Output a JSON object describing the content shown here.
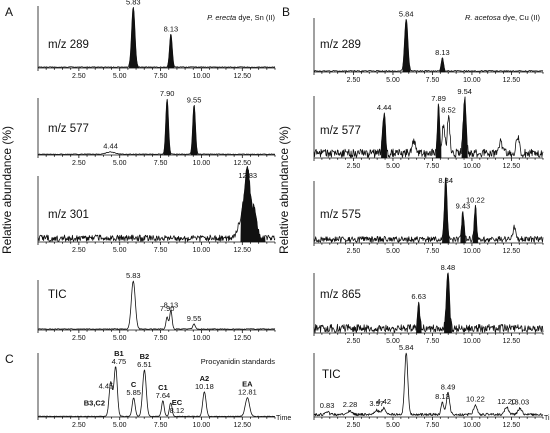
{
  "figure": {
    "ylabel": "Relative abundance (%)",
    "x_unit": "Time"
  },
  "chart_data": [
    {
      "id": "A1",
      "type": "line",
      "panel_letter": "A",
      "corner_text_italic": "P. erecta",
      "corner_text_rest": " dye, Sn (II)",
      "label": "m/z 289",
      "xlim": [
        0,
        14.5
      ],
      "xticks": [
        2.5,
        5.0,
        7.5,
        10.0,
        12.5
      ],
      "tick_labels": [
        "2.50",
        "5.00",
        "7.50",
        "10.00",
        "12.50"
      ],
      "baseline": 0.015,
      "noise": 0.006,
      "peaks": [
        [
          5.83,
          1.0,
          0.1
        ],
        [
          8.13,
          0.55,
          0.08
        ]
      ],
      "shaded": [
        [
          5.58,
          6.18
        ],
        [
          7.92,
          8.34
        ]
      ],
      "peak_labels": [
        {
          "t": 5.83,
          "text": "5.83"
        },
        {
          "t": 8.13,
          "text": "8.13"
        }
      ]
    },
    {
      "id": "A2",
      "type": "line",
      "label": "m/z 577",
      "xlim": [
        0,
        14.5
      ],
      "xticks": [
        2.5,
        5.0,
        7.5,
        10.0,
        12.5
      ],
      "tick_labels": [
        "2.50",
        "5.00",
        "7.50",
        "10.00",
        "12.50"
      ],
      "baseline": 0.015,
      "noise": 0.006,
      "peaks": [
        [
          4.44,
          0.04,
          0.25
        ],
        [
          7.9,
          1.0,
          0.08
        ],
        [
          9.55,
          0.9,
          0.08
        ]
      ],
      "shaded": [
        [
          7.68,
          8.12
        ],
        [
          9.34,
          9.76
        ]
      ],
      "peak_labels": [
        {
          "t": 4.44,
          "text": "4.44"
        },
        {
          "t": 7.9,
          "text": "7.90"
        },
        {
          "t": 9.55,
          "text": "9.55"
        }
      ]
    },
    {
      "id": "A3",
      "type": "line",
      "label": "m/z 301",
      "xlim": [
        0,
        14.5
      ],
      "xticks": [
        2.5,
        5.0,
        7.5,
        10.0,
        12.5
      ],
      "tick_labels": [
        "2.50",
        "5.00",
        "7.50",
        "10.00",
        "12.50"
      ],
      "baseline": 0.06,
      "noise": 0.05,
      "peaks": [
        [
          12.83,
          1.0,
          0.16
        ],
        [
          12.5,
          0.35,
          0.22
        ],
        [
          13.25,
          0.45,
          0.14
        ]
      ],
      "shaded": [
        [
          12.4,
          13.9
        ]
      ],
      "peak_labels": [
        {
          "t": 12.83,
          "text": "12.83"
        }
      ]
    },
    {
      "id": "A4",
      "type": "line",
      "label": "TIC",
      "xlim": [
        0,
        14.5
      ],
      "xticks": [
        2.5,
        5.0,
        7.5,
        10.0,
        12.5
      ],
      "tick_labels": [
        "2.50",
        "5.00",
        "7.50",
        "10.00",
        "12.50"
      ],
      "baseline": 0.02,
      "noise": 0.008,
      "peaks": [
        [
          5.83,
          1.0,
          0.12
        ],
        [
          7.9,
          0.25,
          0.07
        ],
        [
          8.13,
          0.4,
          0.07
        ],
        [
          9.55,
          0.1,
          0.08
        ]
      ],
      "shaded": [],
      "peak_labels": [
        {
          "t": 5.83,
          "text": "5.83"
        },
        {
          "t": 7.9,
          "text": "7.90"
        },
        {
          "t": 8.13,
          "text": "8.13"
        },
        {
          "t": 9.55,
          "text": "9.55"
        }
      ]
    },
    {
      "id": "C",
      "type": "line",
      "panel_letter": "C",
      "corner_text": "Procyanidin standards",
      "label": "",
      "xlim": [
        0,
        14.5
      ],
      "xticks": [
        2.5,
        5.0,
        7.5,
        10.0,
        12.5
      ],
      "tick_labels": [
        "2.50",
        "5.00",
        "7.50",
        "10.00",
        "12.50"
      ],
      "baseline": 0.01,
      "noise": 0.005,
      "peaks": [
        [
          4.45,
          0.55,
          0.1
        ],
        [
          4.75,
          0.8,
          0.1
        ],
        [
          5.85,
          0.3,
          0.09
        ],
        [
          6.51,
          0.75,
          0.11
        ],
        [
          7.64,
          0.25,
          0.08
        ],
        [
          8.12,
          0.22,
          0.08
        ],
        [
          10.18,
          0.4,
          0.1
        ],
        [
          12.81,
          0.3,
          0.13
        ]
      ],
      "shaded": [],
      "peak_labels": [
        {
          "t": 4.1,
          "text": "B3,C2",
          "bold": true
        },
        {
          "t": 4.45,
          "text": "4.45"
        },
        {
          "t": 4.95,
          "text": "B1",
          "bold": true
        },
        {
          "t": 4.95,
          "text": "4.75"
        },
        {
          "t": 6.51,
          "text": "B2",
          "bold": true
        },
        {
          "t": 6.51,
          "text": "6.51"
        },
        {
          "t": 5.85,
          "text": "C",
          "bold": true
        },
        {
          "t": 5.85,
          "text": "5.85"
        },
        {
          "t": 7.64,
          "text": "C1",
          "bold": true
        },
        {
          "t": 7.64,
          "text": "7.64"
        },
        {
          "t": 8.5,
          "text": "EC",
          "bold": true
        },
        {
          "t": 8.5,
          "text": "8.12"
        },
        {
          "t": 10.18,
          "text": "A2",
          "bold": true
        },
        {
          "t": 10.18,
          "text": "10.18"
        },
        {
          "t": 12.81,
          "text": "EA",
          "bold": true
        },
        {
          "t": 12.81,
          "text": "12.81"
        }
      ]
    },
    {
      "id": "B1",
      "type": "line",
      "panel_letter": "B",
      "corner_text_italic": "R. acetosa",
      "corner_text_rest": " dye, Cu (II)",
      "label": "m/z 289",
      "xlim": [
        0,
        14.5
      ],
      "xticks": [
        2.5,
        5.0,
        7.5,
        10.0,
        12.5
      ],
      "tick_labels": [
        "2.50",
        "5.00",
        "7.50",
        "10.00",
        "12.50"
      ],
      "baseline": 0.02,
      "noise": 0.01,
      "peaks": [
        [
          5.84,
          1.0,
          0.1
        ],
        [
          8.13,
          0.25,
          0.07
        ]
      ],
      "shaded": [
        [
          5.62,
          6.08
        ],
        [
          7.95,
          8.3
        ]
      ],
      "peak_labels": [
        {
          "t": 5.84,
          "text": "5.84"
        },
        {
          "t": 8.13,
          "text": "8.13"
        }
      ]
    },
    {
      "id": "B2",
      "type": "line",
      "label": "m/z 577",
      "xlim": [
        0,
        14.5
      ],
      "xticks": [
        2.5,
        5.0,
        7.5,
        10.0,
        12.5
      ],
      "tick_labels": [
        "2.50",
        "5.00",
        "7.50",
        "10.00",
        "12.50"
      ],
      "baseline": 0.08,
      "noise": 0.07,
      "peaks": [
        [
          4.44,
          0.65,
          0.09
        ],
        [
          7.89,
          0.78,
          0.07
        ],
        [
          8.2,
          0.5,
          0.08
        ],
        [
          8.52,
          0.6,
          0.08
        ],
        [
          9.54,
          0.9,
          0.09
        ],
        [
          6.3,
          0.22,
          0.1
        ],
        [
          11.8,
          0.18,
          0.1
        ],
        [
          12.9,
          0.25,
          0.1
        ]
      ],
      "shaded": [
        [
          4.26,
          4.62
        ],
        [
          7.72,
          8.05
        ],
        [
          9.36,
          9.72
        ]
      ],
      "peak_labels": [
        {
          "t": 4.44,
          "text": "4.44"
        },
        {
          "t": 7.89,
          "text": "7.89"
        },
        {
          "t": 8.52,
          "text": "8.52"
        },
        {
          "t": 9.54,
          "text": "9.54"
        }
      ]
    },
    {
      "id": "B3",
      "type": "line",
      "label": "m/z 575",
      "xlim": [
        0,
        14.5
      ],
      "xticks": [
        2.5,
        5.0,
        7.5,
        10.0,
        12.5
      ],
      "tick_labels": [
        "2.50",
        "5.00",
        "7.50",
        "10.00",
        "12.50"
      ],
      "baseline": 0.06,
      "noise": 0.05,
      "peaks": [
        [
          8.34,
          1.0,
          0.08
        ],
        [
          9.43,
          0.45,
          0.07
        ],
        [
          10.22,
          0.55,
          0.07
        ],
        [
          12.7,
          0.2,
          0.1
        ]
      ],
      "shaded": [
        [
          8.12,
          8.58
        ],
        [
          9.28,
          9.6
        ],
        [
          10.06,
          10.38
        ]
      ],
      "peak_labels": [
        {
          "t": 8.34,
          "text": "8.34"
        },
        {
          "t": 9.43,
          "text": "9.43"
        },
        {
          "t": 10.22,
          "text": "10.22"
        }
      ]
    },
    {
      "id": "B4",
      "type": "line",
      "label": "m/z 865",
      "xlim": [
        0,
        14.5
      ],
      "xticks": [
        2.5,
        5.0,
        7.5,
        10.0,
        12.5
      ],
      "tick_labels": [
        "2.50",
        "5.00",
        "7.50",
        "10.00",
        "12.50"
      ],
      "baseline": 0.08,
      "noise": 0.07,
      "peaks": [
        [
          6.63,
          0.4,
          0.07
        ],
        [
          8.48,
          1.0,
          0.09
        ]
      ],
      "shaded": [
        [
          6.48,
          6.8
        ],
        [
          8.25,
          8.72
        ]
      ],
      "peak_labels": [
        {
          "t": 6.63,
          "text": "6.63"
        },
        {
          "t": 8.48,
          "text": "8.48"
        }
      ]
    },
    {
      "id": "B5",
      "type": "line",
      "label": "TIC",
      "xlim": [
        0,
        14.5
      ],
      "xticks": [
        2.5,
        5.0,
        7.5,
        10.0,
        12.5
      ],
      "tick_labels": [
        "2.50",
        "5.00",
        "7.50",
        "10.00",
        "12.50"
      ],
      "baseline": 0.04,
      "noise": 0.02,
      "peaks": [
        [
          0.83,
          0.05,
          0.1
        ],
        [
          2.28,
          0.06,
          0.15
        ],
        [
          3.97,
          0.07,
          0.15
        ],
        [
          4.42,
          0.1,
          0.12
        ],
        [
          5.84,
          1.0,
          0.1
        ],
        [
          8.13,
          0.2,
          0.08
        ],
        [
          8.49,
          0.35,
          0.1
        ],
        [
          10.22,
          0.15,
          0.12
        ],
        [
          12.2,
          0.12,
          0.12
        ],
        [
          13.03,
          0.1,
          0.12
        ]
      ],
      "shaded": [],
      "peak_labels": [
        {
          "t": 0.83,
          "text": "0.83"
        },
        {
          "t": 2.28,
          "text": "2.28"
        },
        {
          "t": 3.97,
          "text": "3.97"
        },
        {
          "t": 4.42,
          "text": "4.42"
        },
        {
          "t": 5.84,
          "text": "5.84"
        },
        {
          "t": 8.13,
          "text": "8.13"
        },
        {
          "t": 8.49,
          "text": "8.49"
        },
        {
          "t": 10.22,
          "text": "10.22"
        },
        {
          "t": 12.2,
          "text": "12.20"
        },
        {
          "t": 13.03,
          "text": "13.03"
        }
      ]
    }
  ]
}
